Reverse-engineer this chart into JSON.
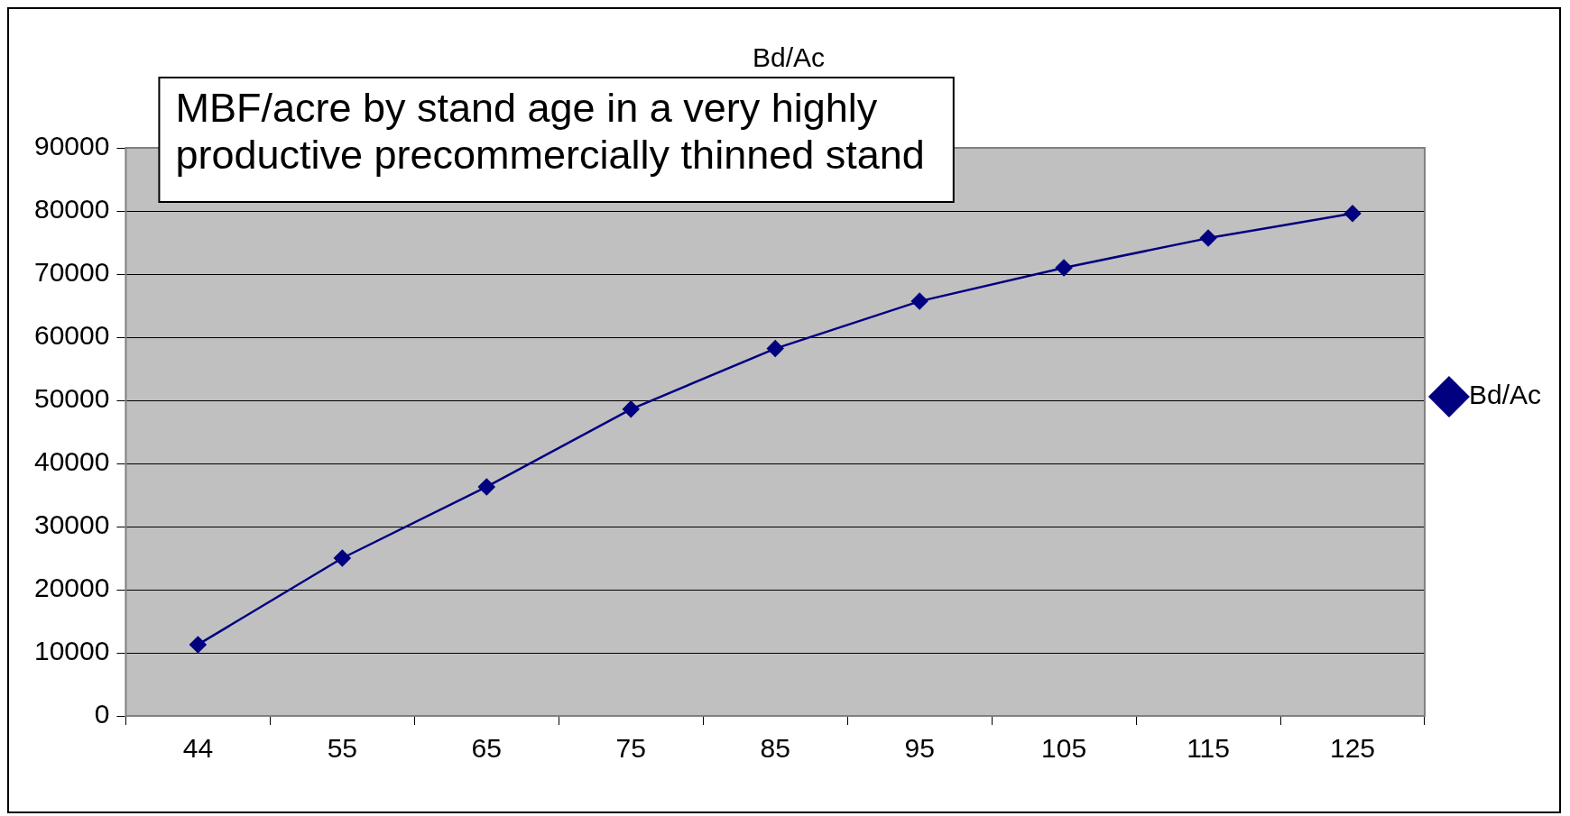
{
  "chart_data": {
    "type": "line",
    "title": "Bd/Ac",
    "annotations": [
      "MBF/acre by stand age in a very highly productive precommercially thinned stand"
    ],
    "categories": [
      "44",
      "55",
      "65",
      "75",
      "85",
      "95",
      "105",
      "115",
      "125"
    ],
    "series": [
      {
        "name": "Bd/Ac",
        "color": "#000080",
        "values": [
          11300,
          25000,
          36300,
          48600,
          58200,
          65700,
          71000,
          75700,
          79600
        ]
      }
    ],
    "ylim": [
      0,
      90000
    ],
    "yticks": [
      0,
      10000,
      20000,
      30000,
      40000,
      50000,
      60000,
      70000,
      80000,
      90000
    ],
    "grid": "y",
    "legend": "right",
    "marker": "diamond",
    "line_style": "solid"
  }
}
